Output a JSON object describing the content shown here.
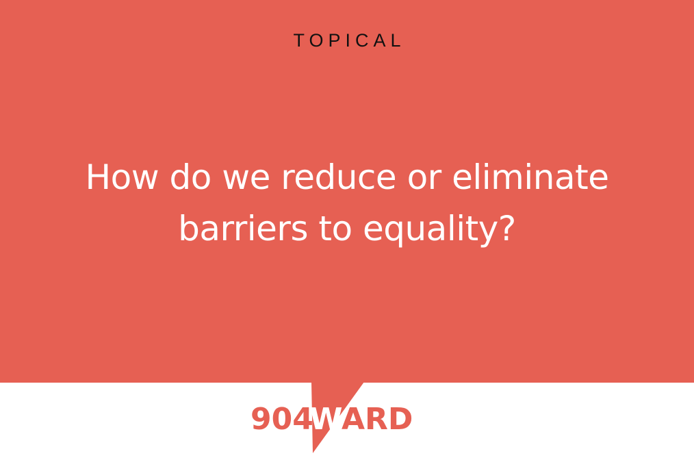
{
  "card": {
    "category": "TOPICAL",
    "question": "How do we reduce or eliminate barriers to equality?",
    "background_color": "#e66053",
    "text_color": "#ffffff"
  },
  "logo": {
    "part1": "904",
    "part2": "W",
    "part3": "ARD",
    "icon": "speech-bubble-tail-icon"
  }
}
